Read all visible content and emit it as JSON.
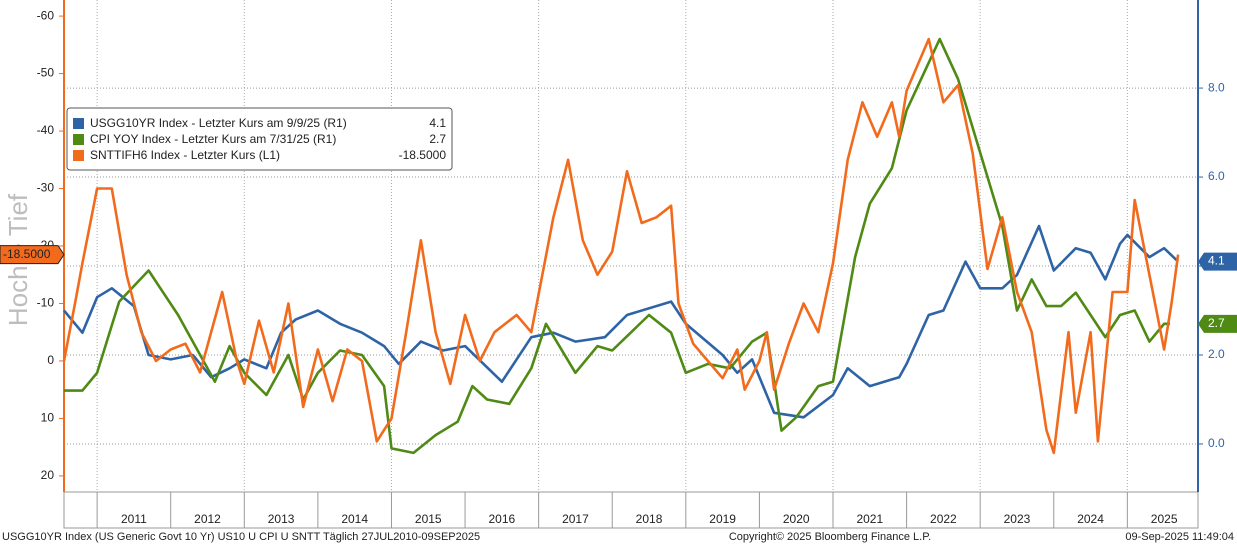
{
  "chart_data": {
    "type": "line",
    "y_axis_label": "Hoch > Tief",
    "xlim": [
      2010.55,
      2025.96
    ],
    "xticks": [
      {
        "value": 2011.5,
        "label": "2011"
      },
      {
        "value": 2012.5,
        "label": "2012"
      },
      {
        "value": 2013.5,
        "label": "2013"
      },
      {
        "value": 2014.5,
        "label": "2014"
      },
      {
        "value": 2015.5,
        "label": "2015"
      },
      {
        "value": 2016.5,
        "label": "2016"
      },
      {
        "value": 2017.5,
        "label": "2017"
      },
      {
        "value": 2018.5,
        "label": "2018"
      },
      {
        "value": 2019.5,
        "label": "2019"
      },
      {
        "value": 2020.5,
        "label": "2020"
      },
      {
        "value": 2021.5,
        "label": "2021"
      },
      {
        "value": 2022.5,
        "label": "2022"
      },
      {
        "value": 2023.5,
        "label": "2023"
      },
      {
        "value": 2024.5,
        "label": "2024"
      },
      {
        "value": 2025.5,
        "label": "2025"
      }
    ],
    "ylim": [
      22.8,
      -62.8
    ],
    "yticks": [
      -60,
      -50,
      -40,
      -30,
      -20,
      -10,
      0,
      10,
      20
    ],
    "y2lim": [
      -1.08,
      9.98
    ],
    "y2ticks": [
      {
        "value": 8,
        "label": "8.0"
      },
      {
        "value": 6,
        "label": "6.0"
      },
      {
        "value": 4,
        "label": "4.0"
      },
      {
        "value": 2,
        "label": "2.0"
      },
      {
        "value": 0,
        "label": "0.0"
      }
    ],
    "grid": true,
    "series": [
      {
        "name": "USGG10YR Index - Letzter Kurs am 9/9/25 (R1)",
        "last_label": "4.1",
        "color": "#2e64a6",
        "axis": "y2",
        "x": [
          2010.55,
          2010.8,
          2011.0,
          2011.2,
          2011.5,
          2011.7,
          2012.0,
          2012.3,
          2012.55,
          2012.8,
          2013.0,
          2013.3,
          2013.5,
          2013.7,
          2014.0,
          2014.3,
          2014.6,
          2014.9,
          2015.1,
          2015.4,
          2015.7,
          2016.0,
          2016.5,
          2016.9,
          2017.2,
          2017.5,
          2017.9,
          2018.2,
          2018.8,
          2019.0,
          2019.5,
          2019.7,
          2019.9,
          2020.2,
          2020.6,
          2021.0,
          2021.2,
          2021.5,
          2021.9,
          2022.0,
          2022.3,
          2022.5,
          2022.8,
          2023.0,
          2023.3,
          2023.5,
          2023.8,
          2024.0,
          2024.3,
          2024.5,
          2024.7,
          2024.9,
          2025.0,
          2025.3,
          2025.5,
          2025.69
        ],
        "values": [
          3.0,
          2.5,
          3.3,
          3.5,
          3.1,
          2.0,
          1.9,
          2.0,
          1.5,
          1.7,
          1.9,
          1.7,
          2.5,
          2.8,
          3.0,
          2.7,
          2.5,
          2.2,
          1.8,
          2.3,
          2.1,
          2.2,
          1.4,
          2.4,
          2.5,
          2.3,
          2.4,
          2.9,
          3.2,
          2.7,
          2.0,
          1.6,
          1.9,
          0.7,
          0.6,
          1.1,
          1.7,
          1.3,
          1.5,
          1.8,
          2.9,
          3.0,
          4.1,
          3.5,
          3.5,
          3.8,
          4.9,
          3.9,
          4.4,
          4.3,
          3.7,
          4.5,
          4.7,
          4.2,
          4.4,
          4.1
        ]
      },
      {
        "name": "CPI YOY Index - Letzter Kurs am 7/31/25 (R1)",
        "last_label": "2.7",
        "color": "#4e8a14",
        "axis": "y2",
        "x": [
          2010.55,
          2010.8,
          2011.0,
          2011.3,
          2011.7,
          2011.9,
          2012.1,
          2012.3,
          2012.6,
          2012.8,
          2013.0,
          2013.3,
          2013.6,
          2013.8,
          2014.0,
          2014.3,
          2014.6,
          2014.9,
          2015.0,
          2015.3,
          2015.6,
          2015.9,
          2016.1,
          2016.3,
          2016.6,
          2016.9,
          2017.1,
          2017.5,
          2017.8,
          2018.0,
          2018.5,
          2018.8,
          2019.0,
          2019.3,
          2019.6,
          2019.9,
          2020.1,
          2020.3,
          2020.5,
          2020.8,
          2021.0,
          2021.3,
          2021.5,
          2021.8,
          2022.0,
          2022.45,
          2022.7,
          2022.9,
          2023.1,
          2023.3,
          2023.5,
          2023.7,
          2023.9,
          2024.1,
          2024.3,
          2024.5,
          2024.7,
          2024.9,
          2025.1,
          2025.3,
          2025.5,
          2025.58
        ],
        "values": [
          1.2,
          1.2,
          1.6,
          3.2,
          3.9,
          3.4,
          2.9,
          2.3,
          1.4,
          2.2,
          1.6,
          1.1,
          2.0,
          1.0,
          1.6,
          2.1,
          2.0,
          1.3,
          -0.1,
          -0.2,
          0.2,
          0.5,
          1.3,
          1.0,
          0.9,
          1.7,
          2.7,
          1.6,
          2.2,
          2.1,
          2.9,
          2.5,
          1.6,
          1.8,
          1.7,
          2.3,
          2.5,
          0.3,
          0.6,
          1.3,
          1.4,
          4.2,
          5.4,
          6.2,
          7.5,
          9.1,
          8.2,
          7.1,
          6.0,
          4.9,
          3.0,
          3.7,
          3.1,
          3.1,
          3.4,
          2.9,
          2.4,
          2.9,
          3.0,
          2.3,
          2.7,
          2.7
        ]
      },
      {
        "name": "SNTTIFH6 Index - Letzter Kurs (L1)",
        "last_label": "-18.5000",
        "color": "#f26b1d",
        "axis": "y",
        "x": [
          2010.55,
          2010.7,
          2010.8,
          2011.0,
          2011.2,
          2011.4,
          2011.6,
          2011.8,
          2012.0,
          2012.2,
          2012.4,
          2012.7,
          2012.9,
          2013.0,
          2013.2,
          2013.4,
          2013.6,
          2013.8,
          2014.0,
          2014.2,
          2014.4,
          2014.6,
          2014.8,
          2015.0,
          2015.2,
          2015.4,
          2015.6,
          2015.8,
          2016.0,
          2016.2,
          2016.4,
          2016.7,
          2016.9,
          2017.2,
          2017.4,
          2017.6,
          2017.8,
          2018.0,
          2018.2,
          2018.4,
          2018.6,
          2018.8,
          2018.9,
          2019.1,
          2019.3,
          2019.5,
          2019.7,
          2019.8,
          2020.0,
          2020.1,
          2020.2,
          2020.4,
          2020.6,
          2020.8,
          2021.0,
          2021.2,
          2021.4,
          2021.6,
          2021.8,
          2021.9,
          2022.0,
          2022.3,
          2022.5,
          2022.7,
          2022.9,
          2023.1,
          2023.3,
          2023.5,
          2023.7,
          2023.9,
          2024.0,
          2024.2,
          2024.3,
          2024.5,
          2024.6,
          2024.8,
          2025.0,
          2025.1,
          2025.3,
          2025.5,
          2025.6,
          2025.69
        ],
        "values": [
          0,
          -10,
          -17,
          -30,
          -30,
          -15,
          -5,
          0,
          -2,
          -3,
          2,
          -12,
          0,
          4,
          -7,
          2,
          -10,
          8,
          -2,
          7,
          -2,
          0,
          14,
          10,
          -5,
          -21,
          -5,
          4,
          -8,
          0,
          -5,
          -8,
          -5,
          -25,
          -35,
          -21,
          -15,
          -19,
          -33,
          -24,
          -25,
          -27,
          -10,
          -3,
          0,
          3,
          -2,
          5,
          0,
          -5,
          5,
          -3,
          -10,
          -5,
          -17,
          -35,
          -45,
          -39,
          -45,
          -39,
          -47,
          -56,
          -45,
          -48,
          -36,
          -16,
          -25,
          -12,
          -5,
          12,
          16,
          -5,
          9,
          -5,
          14,
          -12,
          -12,
          -28,
          -15,
          -2,
          -10,
          -18.5
        ]
      }
    ],
    "footer": {
      "left": "USGG10YR Index (US Generic Govt 10 Yr) US10 U CPI U SNTT  Täglich 27JUL2010-09SEP2025",
      "center": "Copyright© 2025 Bloomberg Finance L.P.",
      "right": "09-Sep-2025 11:49:04"
    }
  }
}
